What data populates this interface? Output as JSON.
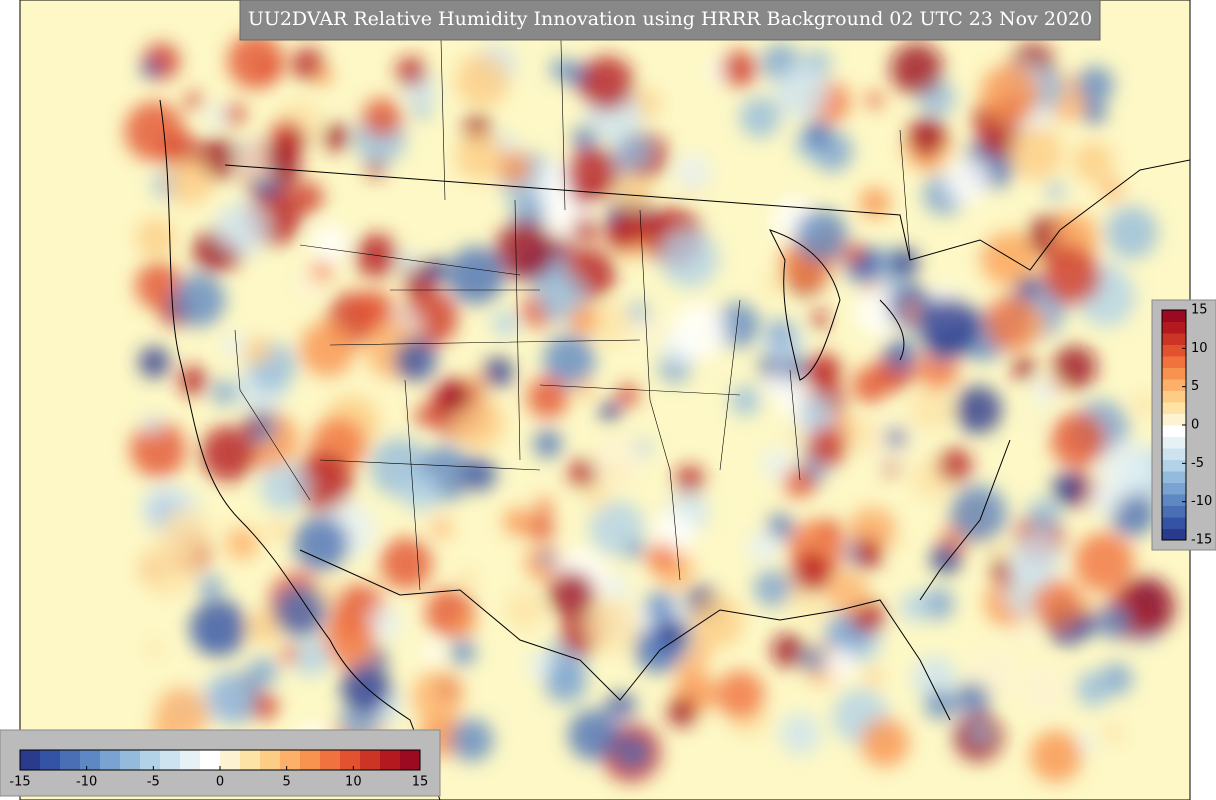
{
  "title": "UU2DVAR Relative Humidity Innovation using HRRR Background 02 UTC 23 Nov 2020",
  "colorbar": {
    "lim": [
      -15,
      15
    ],
    "ticks": [
      -15,
      -10,
      -5,
      0,
      5,
      10,
      15
    ],
    "colors": [
      "#2a3a8c",
      "#3453a4",
      "#4a6fb5",
      "#5e88c3",
      "#7aa3d1",
      "#95bbdc",
      "#b2d2e7",
      "#cde3ef",
      "#e6f1f5",
      "#ffffff",
      "#fdf3d2",
      "#fde3a6",
      "#fdcc85",
      "#fcb06a",
      "#f8924f",
      "#f0723e",
      "#e2522f",
      "#cc3426",
      "#b4191f",
      "#9b0a20"
    ]
  }
}
